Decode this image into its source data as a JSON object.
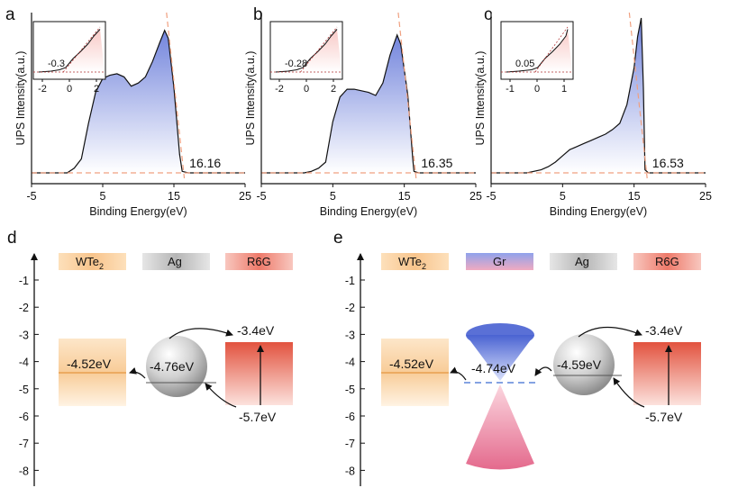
{
  "chart_data": [
    {
      "type": "line",
      "panel": "a",
      "xlabel": "Binding Energy(eV)",
      "ylabel": "UPS Intensity(a.u.)",
      "xlim": [
        -5,
        25
      ],
      "xticks": [
        "-5",
        "5",
        "15",
        "25"
      ],
      "x": [
        -5,
        0,
        1,
        2,
        3,
        4,
        5,
        6,
        7,
        8,
        9,
        10,
        11,
        12,
        13,
        13.7,
        14.2,
        15,
        15.8,
        16.16,
        17,
        25
      ],
      "values": [
        0,
        0,
        0.03,
        0.09,
        0.32,
        0.52,
        0.61,
        0.63,
        0.64,
        0.62,
        0.56,
        0.58,
        0.62,
        0.72,
        0.84,
        0.92,
        0.87,
        0.55,
        0.12,
        0.01,
        0,
        0
      ],
      "cutoff_label": "16.16",
      "inset": {
        "xticks": [
          "-2",
          "0",
          "2"
        ],
        "onset_label": "-0.3"
      }
    },
    {
      "type": "line",
      "panel": "b",
      "xlabel": "Binding Energy(eV)",
      "ylabel": "UPS Intensity(a.u.)",
      "xlim": [
        -5,
        25
      ],
      "xticks": [
        "-5",
        "5",
        "15",
        "25"
      ],
      "x": [
        -5,
        0,
        1,
        2,
        3,
        4,
        5,
        6,
        7,
        8,
        9,
        10,
        11,
        12,
        13,
        14,
        14.5,
        15.5,
        16.2,
        16.35,
        17,
        25
      ],
      "values": [
        0,
        0,
        0,
        0.01,
        0.03,
        0.07,
        0.33,
        0.49,
        0.54,
        0.54,
        0.53,
        0.52,
        0.5,
        0.58,
        0.76,
        0.89,
        0.83,
        0.5,
        0.08,
        0.01,
        0,
        0
      ],
      "cutoff_label": "16.35",
      "inset": {
        "xticks": [
          "-2",
          "0",
          "2"
        ],
        "onset_label": "-0.28"
      }
    },
    {
      "type": "line",
      "panel": "c",
      "xlabel": "Binding Energy(eV)",
      "ylabel": "UPS Intensity(a.u.)",
      "xlim": [
        -5,
        25
      ],
      "xticks": [
        "-5",
        "5",
        "15",
        "25"
      ],
      "x": [
        -5,
        0,
        2,
        3,
        4,
        5,
        6,
        7,
        8,
        9,
        10,
        11,
        12,
        13,
        14,
        15,
        15.5,
        16,
        16.3,
        16.53,
        17,
        25
      ],
      "values": [
        0,
        0,
        0.02,
        0.04,
        0.07,
        0.11,
        0.15,
        0.17,
        0.19,
        0.21,
        0.23,
        0.25,
        0.28,
        0.32,
        0.44,
        0.68,
        0.88,
        1.0,
        0.55,
        0.02,
        0,
        0
      ],
      "cutoff_label": "16.53",
      "inset": {
        "xticks": [
          "-1",
          "0",
          "1"
        ],
        "onset_label": "0.05"
      }
    }
  ],
  "diagram_d": {
    "label": "d",
    "yticks": [
      "-1",
      "-2",
      "-3",
      "-4",
      "-5",
      "-6",
      "-7",
      "-8"
    ],
    "wte2": {
      "name_main": "WTe",
      "name_sub": "2",
      "level": "-4.52eV",
      "level_value": -4.52
    },
    "ag": {
      "name": "Ag",
      "level": "-4.76eV",
      "level_value": -4.76
    },
    "r6g": {
      "name": "R6G",
      "lumo": "-3.4eV",
      "lumo_value": -3.4,
      "homo": "-5.7eV",
      "homo_value": -5.7
    }
  },
  "diagram_e": {
    "label": "e",
    "yticks": [
      "-1",
      "-2",
      "-3",
      "-4",
      "-5",
      "-6",
      "-7",
      "-8"
    ],
    "wte2": {
      "name_main": "WTe",
      "name_sub": "2",
      "level": "-4.52eV",
      "level_value": -4.52
    },
    "gr": {
      "name": "Gr",
      "level": "-4.74eV",
      "level_value": -4.74
    },
    "ag": {
      "name": "Ag",
      "level": "-4.59eV",
      "level_value": -4.59
    },
    "r6g": {
      "name": "R6G",
      "lumo": "-3.4eV",
      "lumo_value": -3.4,
      "homo": "-5.7eV",
      "homo_value": -5.7
    }
  },
  "colors": {
    "blue": "#6070d8",
    "red": "#e05040",
    "orange": "#f6c28a",
    "cutoff": "#f0a080"
  }
}
